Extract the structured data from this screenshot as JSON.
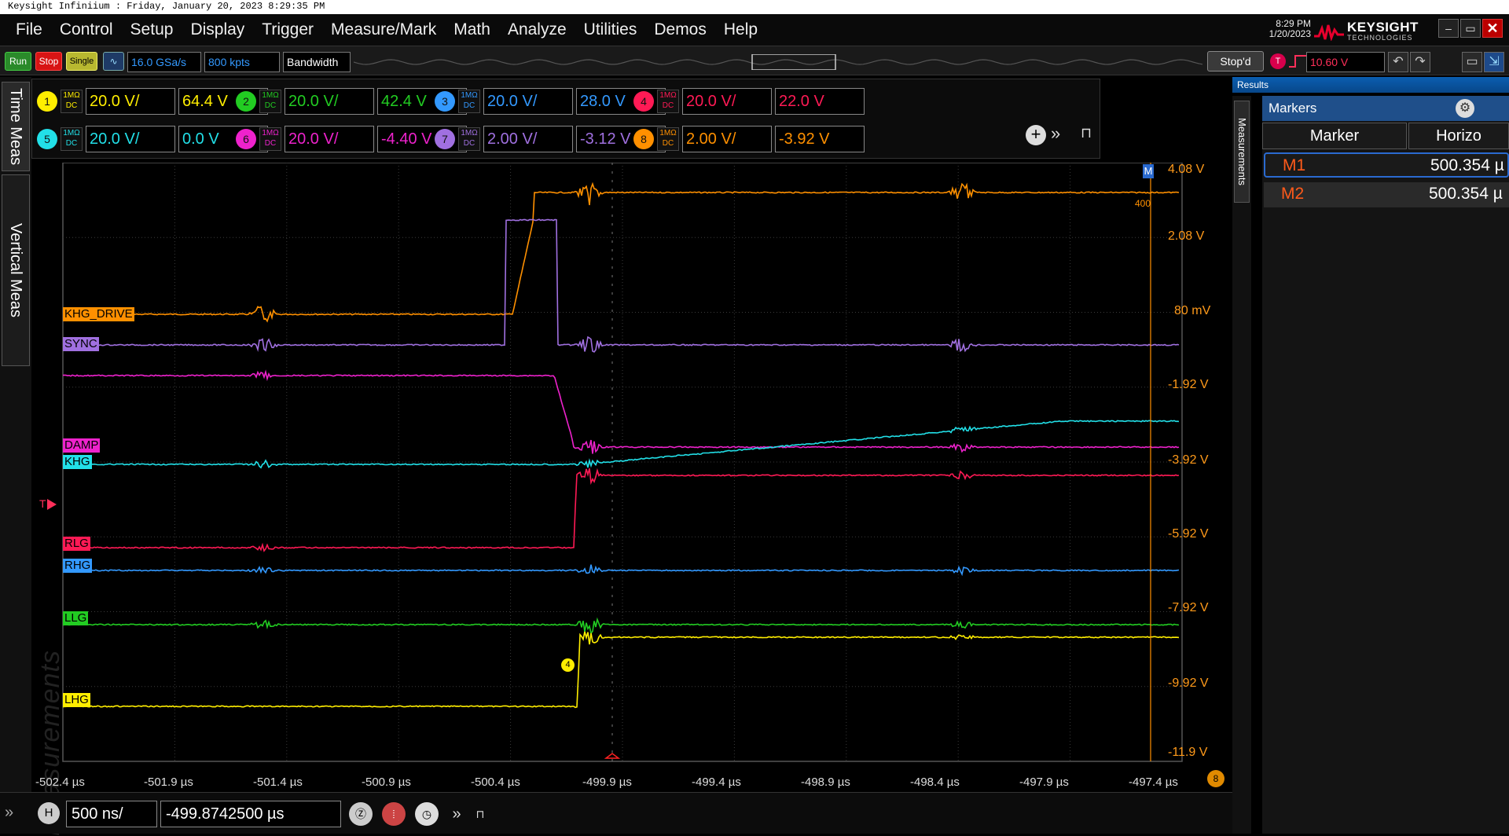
{
  "titlebar": {
    "text": "Keysight Infiniium : Friday, January 20, 2023 8:29:35 PM"
  },
  "menu": [
    "File",
    "Control",
    "Setup",
    "Display",
    "Trigger",
    "Measure/Mark",
    "Math",
    "Analyze",
    "Utilities",
    "Demos",
    "Help"
  ],
  "clock": {
    "time": "8:29 PM",
    "date": "1/20/2023"
  },
  "logo": {
    "main": "KEYSIGHT",
    "sub": "TECHNOLOGIES"
  },
  "toolbar": {
    "run": "Run",
    "stop": "Stop",
    "single": "Single",
    "sample_rate": "16.0 GSa/s",
    "memory_depth": "800 kpts",
    "bandwidth": "Bandwidth",
    "acq_status": "Stop'd",
    "trigger_icon": "T",
    "trigger_level": "10.60 V"
  },
  "colors": {
    "ch1": "#ffee00",
    "ch2": "#22cc22",
    "ch3": "#3399ff",
    "ch4": "#ff1a55",
    "ch5": "#22e0e8",
    "ch6": "#ee22cc",
    "ch7": "#a070e0",
    "ch8": "#ff9000"
  },
  "channels": [
    {
      "num": "1",
      "coupling_top": "1MΩ",
      "coupling_bot": "DC",
      "scale": "20.0 V/",
      "offset": "64.4 V"
    },
    {
      "num": "2",
      "coupling_top": "1MΩ",
      "coupling_bot": "DC",
      "scale": "20.0 V/",
      "offset": "42.4 V"
    },
    {
      "num": "3",
      "coupling_top": "1MΩ",
      "coupling_bot": "DC",
      "scale": "20.0 V/",
      "offset": "28.0 V"
    },
    {
      "num": "4",
      "coupling_top": "1MΩ",
      "coupling_bot": "DC",
      "scale": "20.0 V/",
      "offset": "22.0 V"
    },
    {
      "num": "5",
      "coupling_top": "1MΩ",
      "coupling_bot": "DC",
      "scale": "20.0 V/",
      "offset": "0.0 V"
    },
    {
      "num": "6",
      "coupling_top": "1MΩ",
      "coupling_bot": "DC",
      "scale": "20.0 V/",
      "offset": "-4.40 V"
    },
    {
      "num": "7",
      "coupling_top": "1MΩ",
      "coupling_bot": "DC",
      "scale": "2.00 V/",
      "offset": "-3.12 V"
    },
    {
      "num": "8",
      "coupling_top": "1MΩ",
      "coupling_bot": "DC",
      "scale": "2.00 V/",
      "offset": "-3.92 V"
    }
  ],
  "vtabs": {
    "time": "Time Meas",
    "vertical": "Vertical Meas",
    "watermark": "Measurements"
  },
  "yaxis_labels": [
    "4.08 V",
    "2.08 V",
    "80 mV",
    "-1.92 V",
    "-3.92 V",
    "-5.92 V",
    "-7.92 V",
    "-9.92 V",
    "-11.9 V"
  ],
  "xaxis_labels": [
    "-502.4 µs",
    "-501.9 µs",
    "-501.4 µs",
    "-500.9 µs",
    "-500.4 µs",
    "-499.9 µs",
    "-499.4 µs",
    "-498.9 µs",
    "-498.4 µs",
    "-497.9 µs",
    "-497.4 µs"
  ],
  "trace_labels": {
    "khg_drive": "KHG_DRIVE",
    "sync": "SYNC",
    "damp": "DAMP",
    "khg": "KHG",
    "rlg": "RLG",
    "rhg": "RHG",
    "llg": "LLG",
    "lhg": "LHG"
  },
  "waveform_markers": {
    "edge_marker": "4",
    "ref_ch": "8",
    "trig_marker": "T",
    "top_right": "M",
    "top_right_val": "400"
  },
  "bottom": {
    "h_icon": "H",
    "timebase": "500 ns/",
    "position": "-499.8742500 µs"
  },
  "results": {
    "title": "Results",
    "side_tab": "Measurements",
    "markers_title": "Markers",
    "col_marker": "Marker",
    "col_horiz": "Horizo",
    "rows": [
      {
        "name": "M1",
        "value": "500.354 µ"
      },
      {
        "name": "M2",
        "value": "500.354 µ"
      }
    ]
  }
}
